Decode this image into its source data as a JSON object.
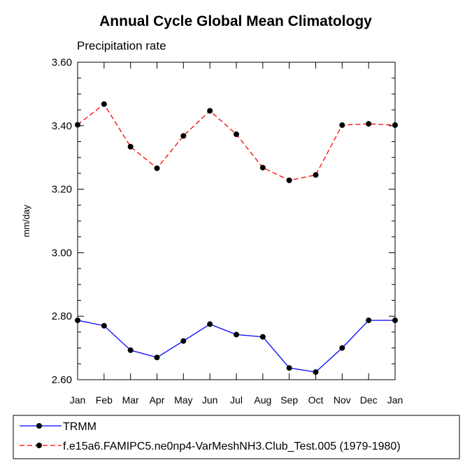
{
  "chart_data": {
    "type": "line",
    "title": "Annual Cycle Global Mean Climatology",
    "subtitle": "Precipitation rate",
    "ylabel": "mm/day",
    "xlabel": "",
    "categories": [
      "Jan",
      "Feb",
      "Mar",
      "Apr",
      "May",
      "Jun",
      "Jul",
      "Aug",
      "Sep",
      "Oct",
      "Nov",
      "Dec",
      "Jan"
    ],
    "ylim": [
      2.6,
      3.6
    ],
    "yticks": [
      2.6,
      2.8,
      3.0,
      3.2,
      3.4,
      3.6
    ],
    "ytick_labels": [
      "2.60",
      "2.80",
      "3.00",
      "3.20",
      "3.40",
      "3.60"
    ],
    "grid": false,
    "legend_position": "bottom",
    "series": [
      {
        "name": "TRMM",
        "color": "#0000ff",
        "dash": "solid",
        "values": [
          2.787,
          2.77,
          2.693,
          2.67,
          2.722,
          2.775,
          2.742,
          2.735,
          2.637,
          2.624,
          2.7,
          2.787,
          2.787
        ]
      },
      {
        "name": "f.e15a6.FAMIPC5.ne0np4-VarMeshNH3.Club_Test.005 (1979-1980)",
        "color": "#ff0000",
        "dash": "dashed",
        "values": [
          3.403,
          3.468,
          3.334,
          3.266,
          3.368,
          3.447,
          3.373,
          3.268,
          3.228,
          3.245,
          3.402,
          3.406,
          3.402
        ]
      }
    ]
  }
}
